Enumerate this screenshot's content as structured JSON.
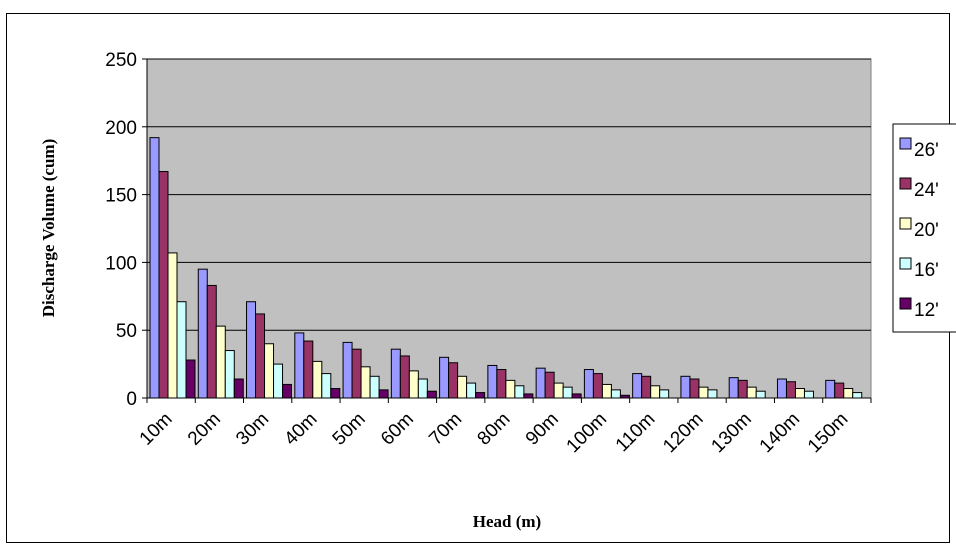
{
  "chart_data": {
    "type": "bar",
    "title": "",
    "xlabel": "Head (m)",
    "ylabel": "Discharge Volume (cum)",
    "ylim": [
      0,
      250
    ],
    "yticks": [
      0,
      50,
      100,
      150,
      200,
      250
    ],
    "grid": true,
    "legend_position": "right",
    "plot_background": "#c0c0c0",
    "categories": [
      "10m",
      "20m",
      "30m",
      "40m",
      "50m",
      "60m",
      "70m",
      "80m",
      "90m",
      "100m",
      "110m",
      "120m",
      "130m",
      "140m",
      "150m"
    ],
    "series": [
      {
        "name": "26'",
        "color": "#9999ff",
        "values": [
          192,
          95,
          71,
          48,
          41,
          36,
          30,
          24,
          22,
          21,
          18,
          16,
          15,
          14,
          13
        ]
      },
      {
        "name": "24'",
        "color": "#993366",
        "values": [
          167,
          83,
          62,
          42,
          36,
          31,
          26,
          21,
          19,
          18,
          16,
          14,
          13,
          12,
          11
        ]
      },
      {
        "name": "20'",
        "color": "#ffffcc",
        "values": [
          107,
          53,
          40,
          27,
          23,
          20,
          16,
          13,
          11,
          10,
          9,
          8,
          8,
          7,
          7
        ]
      },
      {
        "name": "16'",
        "color": "#ccffff",
        "values": [
          71,
          35,
          25,
          18,
          16,
          14,
          11,
          9,
          8,
          6,
          6,
          6,
          5,
          5,
          4
        ]
      },
      {
        "name": "12'",
        "color": "#660066",
        "values": [
          28,
          14,
          10,
          7,
          6,
          5,
          4,
          3,
          3,
          2,
          0,
          0,
          0,
          0,
          0
        ]
      }
    ]
  }
}
